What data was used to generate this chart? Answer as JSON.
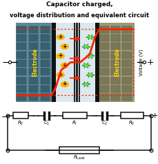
{
  "title_line1": "Capacitor charged,",
  "title_line2": "voltage distribution and equivalent circuit",
  "title_fontsize": 6.5,
  "bg_color": "#ffffff",
  "circuit_line_color": "#111111",
  "voltage_curve_color": "#ff2200",
  "electrode_label_color": "#ffd700"
}
